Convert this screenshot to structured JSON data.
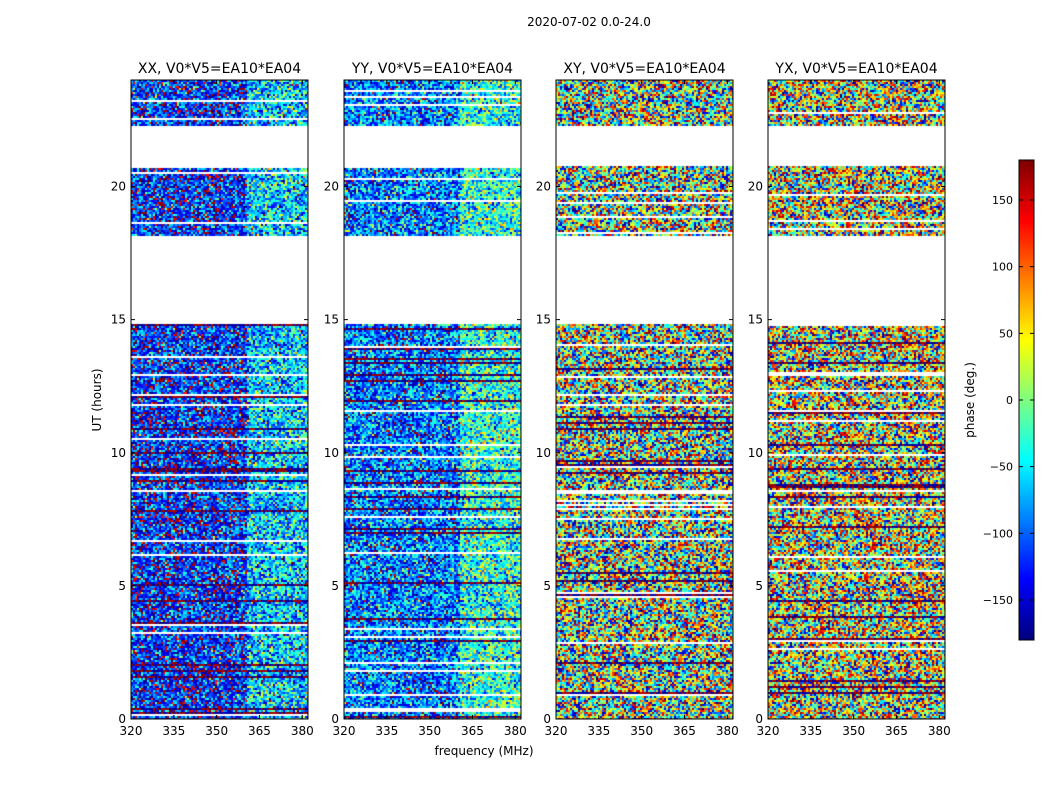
{
  "chart_data": {
    "type": "heatmap",
    "suptitle": "2020-07-02 0.0-24.0",
    "xlabel": "frequency (MHz)",
    "ylabel": "UT (hours)",
    "xlim": [
      320,
      382
    ],
    "ylim": [
      0,
      24
    ],
    "x_ticks": [
      320,
      335,
      350,
      365,
      380
    ],
    "y_ticks": [
      0,
      5,
      10,
      15,
      20
    ],
    "panels": [
      {
        "title": "XX, V0*V5=EA10*EA04",
        "low_band_mean": -120,
        "high_band_mean": -60,
        "noise": 90
      },
      {
        "title": "YY, V0*V5=EA10*EA04",
        "low_band_mean": -90,
        "high_band_mean": -30,
        "noise": 90
      },
      {
        "title": "XY, V0*V5=EA10*EA04",
        "low_band_mean": 0,
        "high_band_mean": 0,
        "noise": 180
      },
      {
        "title": "YX, V0*V5=EA10*EA04",
        "low_band_mean": 40,
        "high_band_mean": 40,
        "noise": 170
      }
    ],
    "band_split_mhz": 360,
    "data_time_ranges": [
      [
        0,
        14.9
      ],
      [
        18.2,
        20.8
      ],
      [
        22.3,
        24
      ]
    ],
    "colorbar": {
      "label": "phase (deg.)",
      "range": [
        -180,
        180
      ],
      "ticks": [
        -150,
        -100,
        -50,
        0,
        50,
        100,
        150
      ],
      "tick_labels": [
        "−150",
        "−100",
        "−50",
        "0",
        "50",
        "100",
        "150"
      ],
      "colormap": "jet"
    }
  }
}
